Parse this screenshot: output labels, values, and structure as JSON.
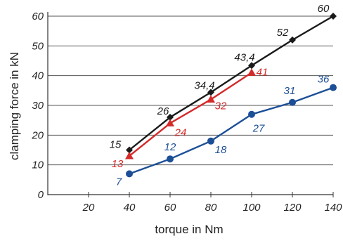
{
  "chart_data": {
    "type": "line",
    "xlabel": "torque in Nm",
    "ylabel": "clamping force in kN",
    "xlim": [
      0,
      140
    ],
    "ylim": [
      0,
      60
    ],
    "x_ticks": [
      "20",
      "40",
      "60",
      "80",
      "100",
      "120",
      "140"
    ],
    "y_ticks": [
      "0",
      "10",
      "20",
      "30",
      "40",
      "50",
      "60"
    ],
    "grid": "horizontal",
    "legend": "none",
    "series": [
      {
        "color": "#1a1a1a",
        "marker": "diamond",
        "x": [
          40,
          60,
          80,
          100,
          120,
          140
        ],
        "y": [
          15,
          26,
          34.4,
          43.4,
          52,
          60
        ],
        "labels": [
          "15",
          "26",
          "34,4",
          "43,4",
          "52",
          "60"
        ]
      },
      {
        "color": "#d42a2a",
        "marker": "triangle",
        "x": [
          40,
          60,
          80,
          100
        ],
        "y": [
          13,
          24,
          32,
          41
        ],
        "labels": [
          "13",
          "24",
          "32",
          "41"
        ]
      },
      {
        "color": "#1c4f96",
        "marker": "circle",
        "x": [
          40,
          60,
          80,
          100,
          120,
          140
        ],
        "y": [
          7,
          12,
          18,
          27,
          31,
          36
        ],
        "labels": [
          "7",
          "12",
          "18",
          "27",
          "31",
          "36"
        ]
      }
    ]
  }
}
